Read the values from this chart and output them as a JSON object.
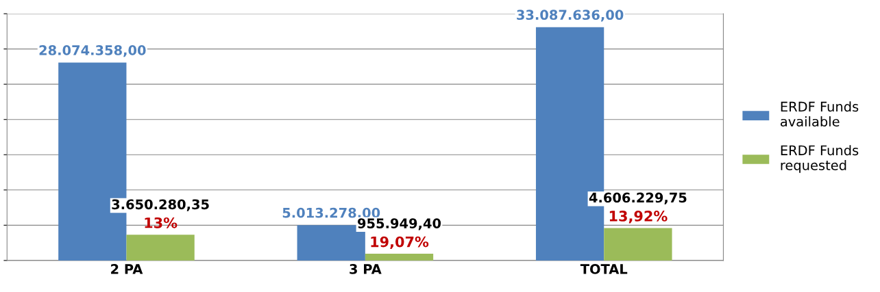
{
  "chart_data": {
    "type": "bar",
    "categories": [
      "2 PA",
      "3 PA",
      "TOTAL"
    ],
    "series": [
      {
        "name": "ERDF Funds\navailable",
        "color": "#4f81bd",
        "values": [
          28074358.0,
          5013278.0,
          33087636.0
        ],
        "value_labels": [
          "28.074.358,00",
          "5.013.278,00",
          "33.087.636,00"
        ]
      },
      {
        "name": "ERDF Funds\nrequested",
        "color": "#9bbb59",
        "values": [
          3650280.35,
          955949.4,
          4606229.75
        ],
        "value_labels": [
          "3.650.280,35",
          "955.949,40",
          "4.606.229,75"
        ]
      }
    ],
    "annotations": [
      {
        "text": "13%",
        "x": "2 PA",
        "y": 3650280.35
      },
      {
        "text": "19,07%",
        "x": "3 PA",
        "y": 955949.4
      },
      {
        "text": "13,92%",
        "x": "TOTAL",
        "y": 4606229.75
      }
    ],
    "ylim": [
      0,
      35000000
    ],
    "yticks": [
      {
        "value": 0,
        "label": null
      },
      {
        "value": 5000000,
        "label": null
      },
      {
        "value": 10000000,
        "label": null
      },
      {
        "value": 15000000,
        "label": null
      },
      {
        "value": 20000000,
        "label": null
      },
      {
        "value": 25000000,
        "label": null
      },
      {
        "value": 30000000,
        "label": null
      },
      {
        "value": 35000000,
        "label": null
      }
    ],
    "tick_labels": "x",
    "grid": "y",
    "legend": "right"
  }
}
